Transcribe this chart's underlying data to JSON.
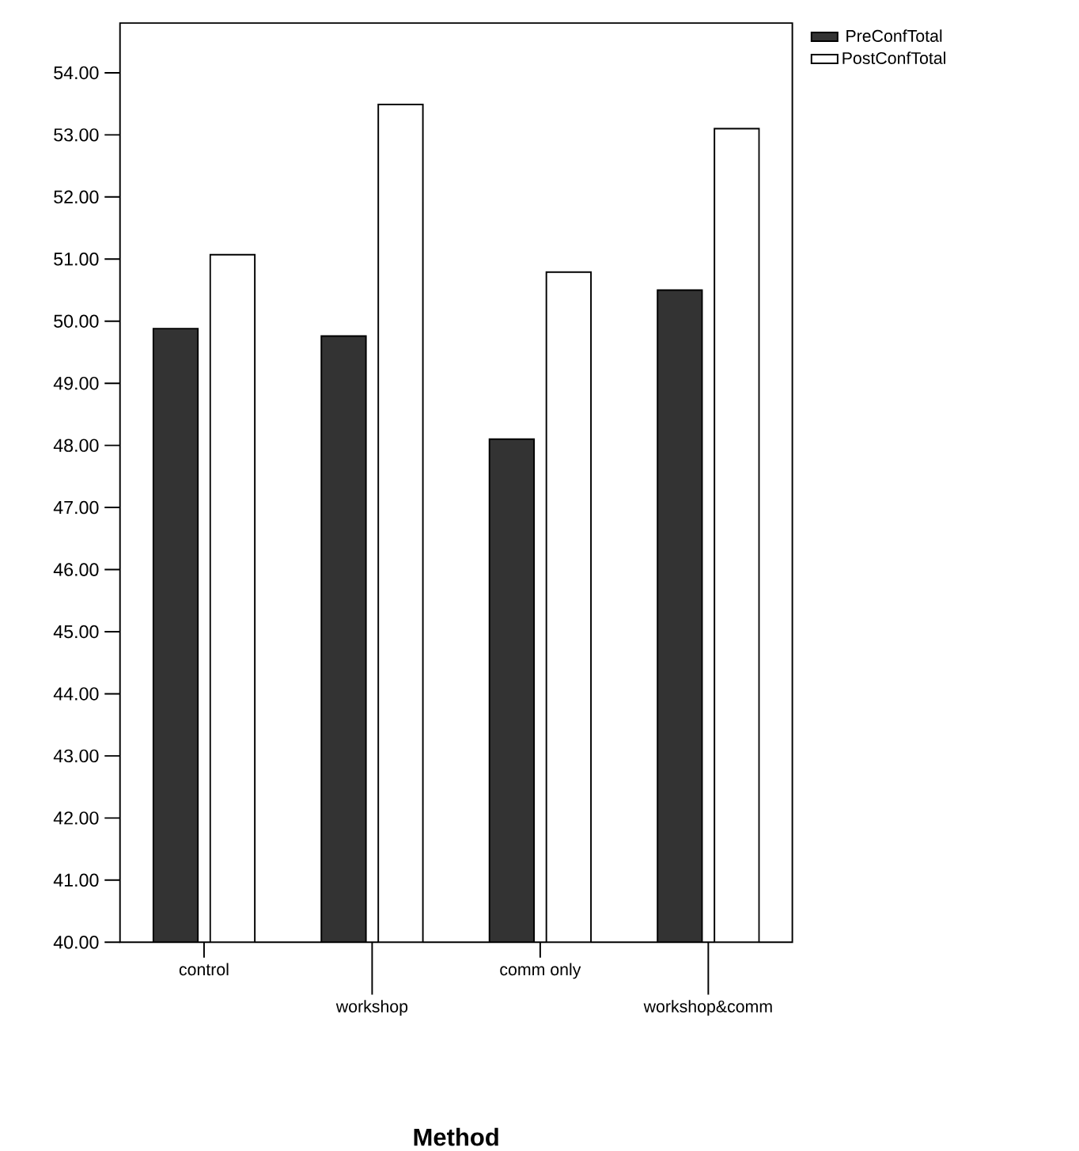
{
  "chart_data": {
    "type": "bar",
    "xlabel": "Method",
    "categories": [
      "control",
      "workshop",
      "comm only",
      "workshop&comm"
    ],
    "series": [
      {
        "name": "PreConfTotal",
        "color": "#333333",
        "values": [
          49.88,
          49.76,
          48.1,
          50.5
        ]
      },
      {
        "name": "PostConfTotal",
        "color": "#ffffff",
        "values": [
          51.07,
          53.49,
          50.79,
          53.1
        ]
      }
    ],
    "ylim": [
      40,
      54.8
    ],
    "yticks": [
      {
        "value": 40,
        "label": "40.00"
      },
      {
        "value": 41,
        "label": "41.00"
      },
      {
        "value": 42,
        "label": "42.00"
      },
      {
        "value": 43,
        "label": "43.00"
      },
      {
        "value": 44,
        "label": "44.00"
      },
      {
        "value": 45,
        "label": "45.00"
      },
      {
        "value": 46,
        "label": "46.00"
      },
      {
        "value": 47,
        "label": "47.00"
      },
      {
        "value": 48,
        "label": "48.00"
      },
      {
        "value": 49,
        "label": "49.00"
      },
      {
        "value": 50,
        "label": "50.00"
      },
      {
        "value": 51,
        "label": "51.00"
      },
      {
        "value": 52,
        "label": "52.00"
      },
      {
        "value": 53,
        "label": "53.00"
      },
      {
        "value": 54,
        "label": "54.00"
      }
    ],
    "grid": false,
    "legend": "top right"
  }
}
